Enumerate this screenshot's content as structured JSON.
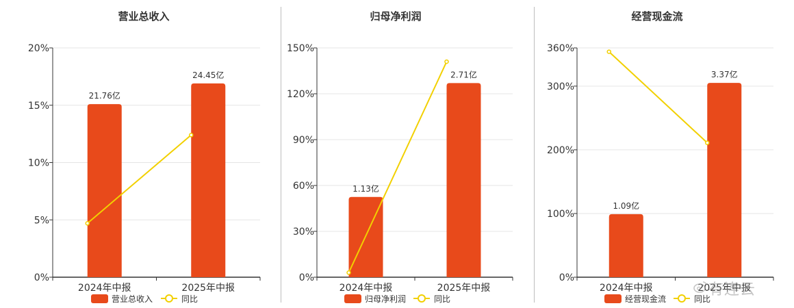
{
  "colors": {
    "bar": "#e84a1b",
    "line": "#f2d000",
    "axis": "#333333",
    "grid": "#e5e5e5",
    "text": "#333333"
  },
  "watermark": {
    "text": "有连云",
    "icon": "weibo-icon"
  },
  "chart_data": [
    {
      "type": "bar",
      "title": "营业总收入",
      "categories": [
        "2024年中报",
        "2025年中报"
      ],
      "y_ticks": [
        "0%",
        "5%",
        "10%",
        "15%",
        "20%"
      ],
      "ylim": [
        0,
        20
      ],
      "series": [
        {
          "name": "营业总收入",
          "kind": "bar",
          "values": [
            15.1,
            16.9
          ],
          "labels": [
            "21.76亿",
            "24.45亿"
          ]
        },
        {
          "name": "同比",
          "kind": "line",
          "values": [
            4.7,
            12.4
          ]
        }
      ],
      "legend": "bottom"
    },
    {
      "type": "bar",
      "title": "归母净利润",
      "categories": [
        "2024年中报",
        "2025年中报"
      ],
      "y_ticks": [
        "0%",
        "30%",
        "60%",
        "90%",
        "120%",
        "150%"
      ],
      "ylim": [
        0,
        150
      ],
      "series": [
        {
          "name": "归母净利润",
          "kind": "bar",
          "values": [
            52.5,
            127
          ],
          "labels": [
            "1.13亿",
            "2.71亿"
          ]
        },
        {
          "name": "同比",
          "kind": "line",
          "values": [
            3,
            141
          ]
        }
      ],
      "legend": "bottom"
    },
    {
      "type": "bar",
      "title": "经营现金流",
      "categories": [
        "2024年中报",
        "2025年中报"
      ],
      "y_ticks": [
        "0%",
        "100%",
        "200%",
        "300%",
        "360%"
      ],
      "ylim": [
        0,
        360
      ],
      "series": [
        {
          "name": "经营现金流",
          "kind": "bar",
          "values": [
            99,
            305
          ],
          "labels": [
            "1.09亿",
            "3.37亿"
          ]
        },
        {
          "name": "同比",
          "kind": "line",
          "values": [
            354,
            211
          ]
        }
      ],
      "legend": "bottom"
    }
  ]
}
